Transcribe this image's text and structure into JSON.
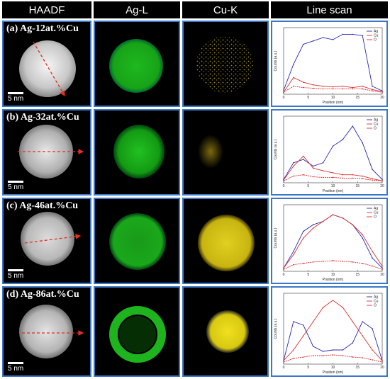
{
  "headers": [
    "HAADF",
    "Ag-L",
    "Cu-K",
    "Line scan"
  ],
  "rows": [
    {
      "label": "(a) Ag-12at.%Cu",
      "scale": "5 nm"
    },
    {
      "label": "(b) Ag-32at.%Cu",
      "scale": "5 nm"
    },
    {
      "label": "(c) Ag-46at.%Cu",
      "scale": "5 nm"
    },
    {
      "label": "(d) Ag-86at.%Cu",
      "scale": "5 nm"
    }
  ],
  "colors": {
    "border": "#3b78c8",
    "ag": "#2a2ab8",
    "cu": "#d83030",
    "o": "#d83030",
    "arrow": "#e03020"
  },
  "chart_data": [
    {
      "type": "line",
      "xlabel": "Position (nm)",
      "ylabel": "Counts (a.u.)",
      "x": [
        0,
        2,
        4,
        6,
        8,
        10,
        12,
        14,
        16,
        18,
        20
      ],
      "xticks": [
        0,
        5,
        10,
        15,
        20
      ],
      "xlim": [
        0,
        20
      ],
      "ylim": [
        0,
        1
      ],
      "series": [
        {
          "name": "Ag",
          "values": [
            0.06,
            0.45,
            0.75,
            0.8,
            0.85,
            0.82,
            0.9,
            0.9,
            0.88,
            0.12,
            0.05
          ]
        },
        {
          "name": "Cu",
          "values": [
            0.03,
            0.25,
            0.18,
            0.14,
            0.12,
            0.11,
            0.12,
            0.1,
            0.12,
            0.07,
            0.04
          ]
        },
        {
          "name": "O",
          "values": [
            0.03,
            0.12,
            0.1,
            0.09,
            0.08,
            0.08,
            0.08,
            0.08,
            0.08,
            0.05,
            0.03
          ]
        }
      ]
    },
    {
      "type": "line",
      "xlabel": "Position (nm)",
      "ylabel": "Counts (a.u.)",
      "x": [
        0,
        2,
        4,
        6,
        8,
        10,
        12,
        14,
        16,
        18,
        20
      ],
      "xticks": [
        0,
        5,
        10,
        15,
        20
      ],
      "xlim": [
        0,
        20
      ],
      "ylim": [
        0,
        1
      ],
      "series": [
        {
          "name": "Ag",
          "values": [
            0.05,
            0.3,
            0.35,
            0.25,
            0.3,
            0.55,
            0.65,
            0.85,
            0.6,
            0.2,
            0.05
          ]
        },
        {
          "name": "Cu",
          "values": [
            0.04,
            0.25,
            0.4,
            0.22,
            0.18,
            0.15,
            0.12,
            0.12,
            0.1,
            0.06,
            0.03
          ]
        },
        {
          "name": "O",
          "values": [
            0.03,
            0.1,
            0.12,
            0.09,
            0.08,
            0.08,
            0.07,
            0.07,
            0.06,
            0.04,
            0.03
          ]
        }
      ]
    },
    {
      "type": "line",
      "xlabel": "Position (nm)",
      "ylabel": "Counts (a.u.)",
      "x": [
        0,
        2,
        4,
        6,
        8,
        10,
        12,
        14,
        16,
        18,
        20
      ],
      "xticks": [
        0,
        5,
        10,
        15,
        20
      ],
      "xlim": [
        0,
        20
      ],
      "ylim": [
        0,
        1
      ],
      "series": [
        {
          "name": "Ag",
          "values": [
            0.05,
            0.3,
            0.6,
            0.7,
            0.75,
            0.85,
            0.8,
            0.7,
            0.5,
            0.2,
            0.05
          ]
        },
        {
          "name": "Cu",
          "values": [
            0.05,
            0.25,
            0.5,
            0.65,
            0.75,
            0.85,
            0.8,
            0.7,
            0.55,
            0.3,
            0.08
          ]
        },
        {
          "name": "O",
          "values": [
            0.03,
            0.1,
            0.12,
            0.14,
            0.15,
            0.16,
            0.15,
            0.14,
            0.12,
            0.08,
            0.03
          ]
        }
      ]
    },
    {
      "type": "line",
      "xlabel": "Position (nm)",
      "ylabel": "Counts (a.u.)",
      "x": [
        0,
        2,
        4,
        6,
        8,
        10,
        12,
        14,
        16,
        18,
        20
      ],
      "xticks": [
        0,
        5,
        10,
        15,
        20
      ],
      "xlim": [
        0,
        20
      ],
      "ylim": [
        0,
        1
      ],
      "series": [
        {
          "name": "Ag",
          "values": [
            0.05,
            0.6,
            0.55,
            0.25,
            0.18,
            0.2,
            0.2,
            0.3,
            0.6,
            0.5,
            0.05
          ]
        },
        {
          "name": "Cu",
          "values": [
            0.05,
            0.2,
            0.4,
            0.6,
            0.8,
            0.9,
            0.8,
            0.6,
            0.4,
            0.2,
            0.05
          ]
        },
        {
          "name": "O",
          "values": [
            0.03,
            0.08,
            0.1,
            0.12,
            0.12,
            0.13,
            0.12,
            0.1,
            0.09,
            0.06,
            0.03
          ]
        }
      ]
    }
  ]
}
